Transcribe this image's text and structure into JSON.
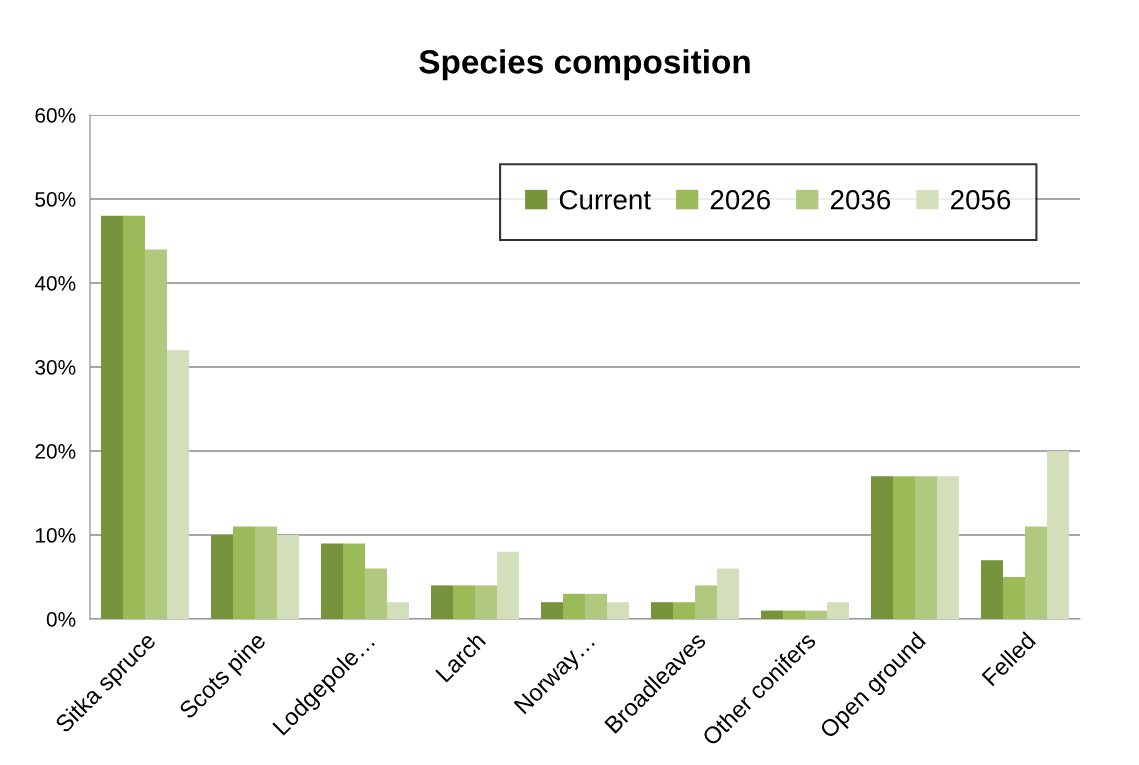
{
  "chart_data": {
    "type": "bar",
    "title": "Species composition",
    "categories": [
      "Sitka spruce",
      "Scots pine",
      "Lodgepole…",
      "Larch",
      "Norway…",
      "Broadleaves",
      "Other conifers",
      "Open ground",
      "Felled"
    ],
    "series": [
      {
        "name": "Current",
        "color": "#77933c",
        "values": [
          48,
          10,
          9,
          4,
          2,
          2,
          1,
          17,
          7
        ]
      },
      {
        "name": "2026",
        "color": "#9bbb59",
        "values": [
          48,
          11,
          9,
          4,
          3,
          2,
          1,
          17,
          5
        ]
      },
      {
        "name": "2036",
        "color": "#b0c97f",
        "values": [
          44,
          11,
          6,
          4,
          3,
          4,
          1,
          17,
          11
        ]
      },
      {
        "name": "2056",
        "color": "#d3dfbb",
        "values": [
          32,
          10,
          2,
          8,
          2,
          6,
          2,
          17,
          20
        ]
      }
    ],
    "ylim": [
      0,
      60
    ],
    "yticks": [
      {
        "value": 0,
        "label": "0%"
      },
      {
        "value": 10,
        "label": "10%"
      },
      {
        "value": 20,
        "label": "20%"
      },
      {
        "value": 30,
        "label": "30%"
      },
      {
        "value": 40,
        "label": "40%"
      },
      {
        "value": 50,
        "label": "50%"
      },
      {
        "value": 60,
        "label": "60%"
      }
    ],
    "grid": "y",
    "legend": "top right"
  }
}
